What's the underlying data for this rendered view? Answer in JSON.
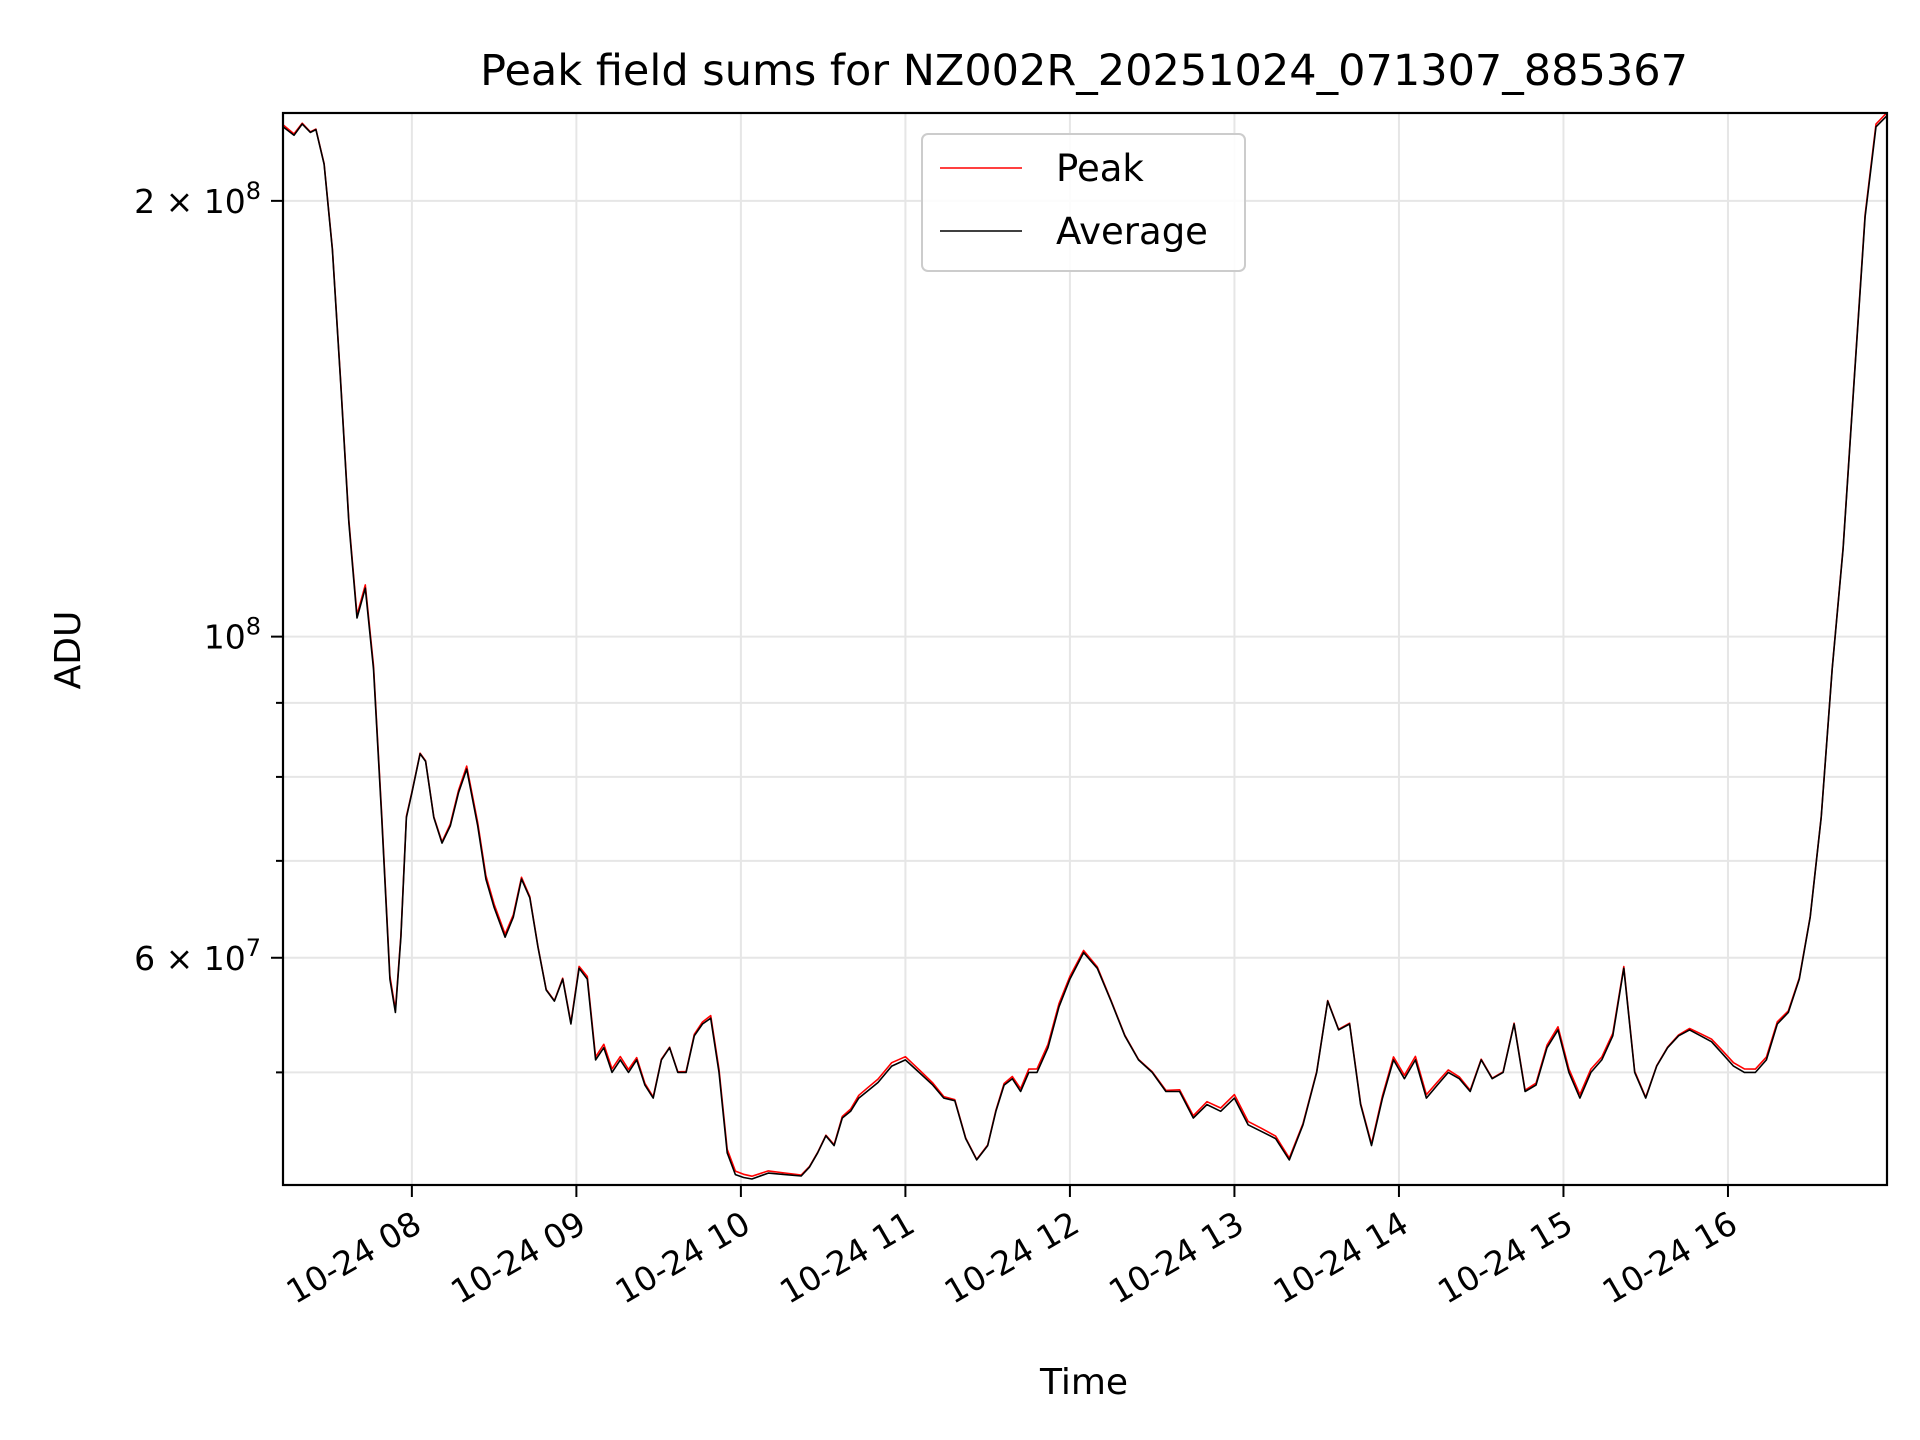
{
  "chart_data": {
    "type": "line",
    "title": "Peak field sums for NZ002R_20251024_071307_885367",
    "xlabel": "Time",
    "ylabel": "ADU",
    "yscale": "log",
    "xlim": [
      "2025-10-24 07:13",
      "2025-10-24 16:58"
    ],
    "ylim": [
      41800000,
      230000000
    ],
    "grid": true,
    "legend": "top-center",
    "x_tick_labels": [
      "10-24 08",
      "10-24 09",
      "10-24 10",
      "10-24 11",
      "10-24 12",
      "10-24 13",
      "10-24 14",
      "10-24 15",
      "10-24 16"
    ],
    "x_ticks": [
      "2025-10-24 08:00",
      "2025-10-24 09:00",
      "2025-10-24 10:00",
      "2025-10-24 11:00",
      "2025-10-24 12:00",
      "2025-10-24 13:00",
      "2025-10-24 14:00",
      "2025-10-24 15:00",
      "2025-10-24 16:00"
    ],
    "y_major_ticks": [
      {
        "value": 200000000,
        "mantissa": "2",
        "exp": "8"
      },
      {
        "value": 100000000,
        "mantissa": "",
        "exp": "8"
      },
      {
        "value": 60000000,
        "mantissa": "6",
        "exp": "7"
      }
    ],
    "y_minor_ticks": [
      50000000,
      70000000,
      80000000,
      90000000
    ],
    "series": [
      {
        "name": "Peak",
        "color": "#ff0000"
      },
      {
        "name": "Average",
        "color": "#000000"
      }
    ],
    "x": [
      "07:13",
      "07:17",
      "07:20",
      "07:23",
      "07:25",
      "07:28",
      "07:31",
      "07:34",
      "07:37",
      "07:40",
      "07:43",
      "07:46",
      "07:49",
      "07:52",
      "07:54",
      "07:56",
      "07:58",
      "08:00",
      "08:03",
      "08:05",
      "08:08",
      "08:11",
      "08:14",
      "08:17",
      "08:20",
      "08:24",
      "08:27",
      "08:30",
      "08:34",
      "08:37",
      "08:40",
      "08:43",
      "08:46",
      "08:49",
      "08:52",
      "08:55",
      "08:58",
      "09:01",
      "09:04",
      "09:07",
      "09:10",
      "09:13",
      "09:16",
      "09:19",
      "09:22",
      "09:25",
      "09:28",
      "09:31",
      "09:34",
      "09:37",
      "09:40",
      "09:43",
      "09:46",
      "09:49",
      "09:52",
      "09:55",
      "09:58",
      "10:01",
      "10:04",
      "10:10",
      "10:16",
      "10:22",
      "10:25",
      "10:28",
      "10:31",
      "10:34",
      "10:37",
      "10:40",
      "10:43",
      "10:46",
      "10:50",
      "10:55",
      "11:00",
      "11:05",
      "11:10",
      "11:14",
      "11:18",
      "11:22",
      "11:26",
      "11:30",
      "11:33",
      "11:36",
      "11:39",
      "11:42",
      "11:45",
      "11:48",
      "11:52",
      "11:56",
      "12:00",
      "12:05",
      "12:10",
      "12:15",
      "12:20",
      "12:25",
      "12:30",
      "12:35",
      "12:40",
      "12:45",
      "12:50",
      "12:55",
      "13:00",
      "13:05",
      "13:10",
      "13:15",
      "13:20",
      "13:25",
      "13:30",
      "13:34",
      "13:38",
      "13:42",
      "13:46",
      "13:50",
      "13:54",
      "13:58",
      "14:02",
      "14:06",
      "14:10",
      "14:14",
      "14:18",
      "14:22",
      "14:26",
      "14:30",
      "14:34",
      "14:38",
      "14:42",
      "14:46",
      "14:50",
      "14:54",
      "14:58",
      "15:02",
      "15:06",
      "15:10",
      "15:14",
      "15:18",
      "15:22",
      "15:26",
      "15:30",
      "15:34",
      "15:38",
      "15:42",
      "15:46",
      "15:50",
      "15:54",
      "15:58",
      "16:02",
      "16:06",
      "16:10",
      "16:14",
      "16:18",
      "16:22",
      "16:26",
      "16:30",
      "16:34",
      "16:38",
      "16:42",
      "16:46",
      "16:50",
      "16:54",
      "16:58"
    ],
    "values": [
      225000000,
      222000000,
      226000000,
      223000000,
      224000000,
      212000000,
      185000000,
      150000000,
      120000000,
      103000000,
      108000000,
      95000000,
      75000000,
      58000000,
      55000000,
      62000000,
      75000000,
      78000000,
      83000000,
      82000000,
      75000000,
      72000000,
      74000000,
      78000000,
      81000000,
      74000000,
      68000000,
      65000000,
      62000000,
      64000000,
      68000000,
      66000000,
      61000000,
      57000000,
      56000000,
      58000000,
      54000000,
      59000000,
      58000000,
      51000000,
      52000000,
      50000000,
      51000000,
      50000000,
      51000000,
      49000000,
      48000000,
      51000000,
      52000000,
      50000000,
      50000000,
      53000000,
      54000000,
      54500000,
      50000000,
      44000000,
      42500000,
      42300000,
      42200000,
      42600000,
      42500000,
      42400000,
      43000000,
      44000000,
      45200000,
      44500000,
      46500000,
      47000000,
      48000000,
      48500000,
      49200000,
      50500000,
      51000000,
      50000000,
      49000000,
      48000000,
      47800000,
      45000000,
      43500000,
      44500000,
      47000000,
      49000000,
      49500000,
      48500000,
      50000000,
      50000000,
      52000000,
      55500000,
      58000000,
      60500000,
      59000000,
      56000000,
      53000000,
      51000000,
      50000000,
      48500000,
      48500000,
      46500000,
      47500000,
      47000000,
      48000000,
      46000000,
      45500000,
      45000000,
      43500000,
      46000000,
      50000000,
      56000000,
      53500000,
      54000000,
      47500000,
      44500000,
      48000000,
      51000000,
      49500000,
      51000000,
      48000000,
      49000000,
      50000000,
      49500000,
      48500000,
      51000000,
      49500000,
      50000000,
      54000000,
      48500000,
      49000000,
      52000000,
      53500000,
      50000000,
      48000000,
      50000000,
      51000000,
      53000000,
      59000000,
      50000000,
      48000000,
      50500000,
      52000000,
      53000000,
      53500000,
      53000000,
      52500000,
      51500000,
      50500000,
      50000000,
      50000000,
      51000000,
      54000000,
      55000000,
      58000000,
      64000000,
      75000000,
      95000000,
      115000000,
      150000000,
      195000000,
      225000000,
      229000000
    ]
  }
}
